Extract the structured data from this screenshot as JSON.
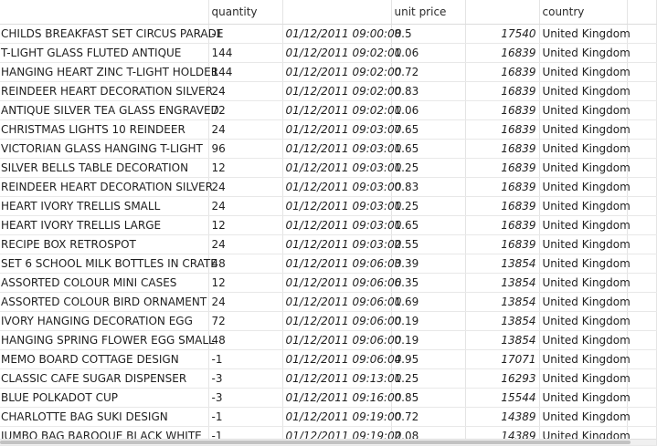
{
  "columns": {
    "description": "",
    "quantity": "quantity",
    "invoice_date": "",
    "unit_price": "unit price",
    "customer_id": "",
    "country": "country",
    "extra": ""
  },
  "rows": [
    {
      "description": "CHILDS BREAKFAST SET CIRCUS PARADE",
      "quantity": "-1",
      "invoice_date": "01/12/2011 09:00:00",
      "unit_price": "8.5",
      "customer_id": "17540",
      "country": "United Kingdom"
    },
    {
      "description": "T-LIGHT GLASS FLUTED ANTIQUE",
      "quantity": "144",
      "invoice_date": "01/12/2011 09:02:00",
      "unit_price": "1.06",
      "customer_id": "16839",
      "country": "United Kingdom"
    },
    {
      "description": "HANGING HEART ZINC T-LIGHT HOLDER",
      "quantity": "144",
      "invoice_date": "01/12/2011 09:02:00",
      "unit_price": "0.72",
      "customer_id": "16839",
      "country": "United Kingdom"
    },
    {
      "description": "REINDEER HEART DECORATION SILVER",
      "quantity": "24",
      "invoice_date": "01/12/2011 09:02:00",
      "unit_price": "0.83",
      "customer_id": "16839",
      "country": "United Kingdom"
    },
    {
      "description": "ANTIQUE SILVER TEA GLASS ENGRAVED",
      "quantity": "72",
      "invoice_date": "01/12/2011 09:02:00",
      "unit_price": "1.06",
      "customer_id": "16839",
      "country": "United Kingdom"
    },
    {
      "description": "CHRISTMAS LIGHTS 10 REINDEER",
      "quantity": "24",
      "invoice_date": "01/12/2011 09:03:00",
      "unit_price": "7.65",
      "customer_id": "16839",
      "country": "United Kingdom"
    },
    {
      "description": "VICTORIAN GLASS HANGING T-LIGHT",
      "quantity": "96",
      "invoice_date": "01/12/2011 09:03:00",
      "unit_price": "1.65",
      "customer_id": "16839",
      "country": "United Kingdom"
    },
    {
      "description": "SILVER BELLS TABLE DECORATION",
      "quantity": "12",
      "invoice_date": "01/12/2011 09:03:00",
      "unit_price": "1.25",
      "customer_id": "16839",
      "country": "United Kingdom"
    },
    {
      "description": "REINDEER HEART DECORATION SILVER",
      "quantity": "24",
      "invoice_date": "01/12/2011 09:03:00",
      "unit_price": "0.83",
      "customer_id": "16839",
      "country": "United Kingdom"
    },
    {
      "description": "HEART IVORY TRELLIS SMALL",
      "quantity": "24",
      "invoice_date": "01/12/2011 09:03:00",
      "unit_price": "1.25",
      "customer_id": "16839",
      "country": "United Kingdom"
    },
    {
      "description": "HEART IVORY TRELLIS LARGE",
      "quantity": "12",
      "invoice_date": "01/12/2011 09:03:00",
      "unit_price": "1.65",
      "customer_id": "16839",
      "country": "United Kingdom"
    },
    {
      "description": "RECIPE BOX RETROSPOT",
      "quantity": "24",
      "invoice_date": "01/12/2011 09:03:00",
      "unit_price": "2.55",
      "customer_id": "16839",
      "country": "United Kingdom"
    },
    {
      "description": "SET 6 SCHOOL MILK BOTTLES IN CRATE",
      "quantity": "48",
      "invoice_date": "01/12/2011 09:06:00",
      "unit_price": "3.39",
      "customer_id": "13854",
      "country": "United Kingdom"
    },
    {
      "description": "ASSORTED COLOUR MINI CASES",
      "quantity": "12",
      "invoice_date": "01/12/2011 09:06:00",
      "unit_price": "6.35",
      "customer_id": "13854",
      "country": "United Kingdom"
    },
    {
      "description": "ASSORTED COLOUR BIRD ORNAMENT",
      "quantity": "24",
      "invoice_date": "01/12/2011 09:06:00",
      "unit_price": "1.69",
      "customer_id": "13854",
      "country": "United Kingdom"
    },
    {
      "description": "IVORY HANGING DECORATION  EGG",
      "quantity": "72",
      "invoice_date": "01/12/2011 09:06:00",
      "unit_price": "0.19",
      "customer_id": "13854",
      "country": "United Kingdom"
    },
    {
      "description": "HANGING SPRING FLOWER EGG SMALL",
      "quantity": "48",
      "invoice_date": "01/12/2011 09:06:00",
      "unit_price": "0.19",
      "customer_id": "13854",
      "country": "United Kingdom"
    },
    {
      "description": "MEMO BOARD COTTAGE DESIGN",
      "quantity": "-1",
      "invoice_date": "01/12/2011 09:06:00",
      "unit_price": "4.95",
      "customer_id": "17071",
      "country": "United Kingdom"
    },
    {
      "description": "CLASSIC CAFE SUGAR DISPENSER",
      "quantity": "-3",
      "invoice_date": "01/12/2011 09:13:00",
      "unit_price": "1.25",
      "customer_id": "16293",
      "country": "United Kingdom"
    },
    {
      "description": "BLUE POLKADOT CUP",
      "quantity": "-3",
      "invoice_date": "01/12/2011 09:16:00",
      "unit_price": "0.85",
      "customer_id": "15544",
      "country": "United Kingdom"
    },
    {
      "description": "CHARLOTTE BAG SUKI DESIGN",
      "quantity": "-1",
      "invoice_date": "01/12/2011 09:19:00",
      "unit_price": "0.72",
      "customer_id": "14389",
      "country": "United Kingdom"
    },
    {
      "description": "JUMBO  BAG BAROQUE BLACK WHITE",
      "quantity": "-1",
      "invoice_date": "01/12/2011 09:19:00",
      "unit_price": "2.08",
      "customer_id": "14389",
      "country": "United Kingdom"
    }
  ]
}
